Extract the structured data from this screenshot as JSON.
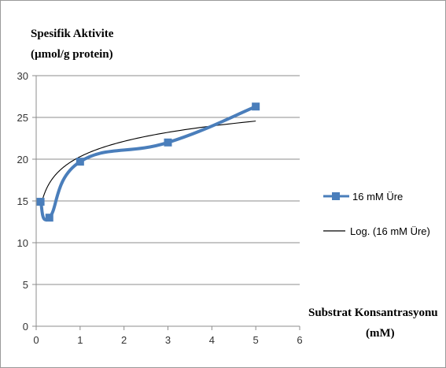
{
  "chart_data": {
    "type": "line",
    "ylabel_line1": "Spesifik Aktivite",
    "ylabel_line2": "(µmol/g protein)",
    "xlabel_line1": "Substrat Konsantrasyonu",
    "xlabel_line2": "(mM)",
    "xlim": [
      0,
      6
    ],
    "ylim": [
      0,
      30
    ],
    "xticks": [
      0,
      1,
      2,
      3,
      4,
      5,
      6
    ],
    "yticks": [
      0,
      5,
      10,
      15,
      20,
      25,
      30
    ],
    "grid": "horizontal",
    "legend_position": "right",
    "series": [
      {
        "name": "16 mM Üre",
        "kind": "smoothed-line-with-square-markers",
        "color": "#4a7ebb",
        "x": [
          0.1,
          0.3,
          1.0,
          3.0,
          5.0
        ],
        "y": [
          14.9,
          13.0,
          19.7,
          22.0,
          26.3
        ]
      },
      {
        "name": "Log. (16 mM Üre)",
        "kind": "logarithmic-trendline",
        "color": "#000000",
        "a": 20.3,
        "b": 2.65
      }
    ]
  }
}
